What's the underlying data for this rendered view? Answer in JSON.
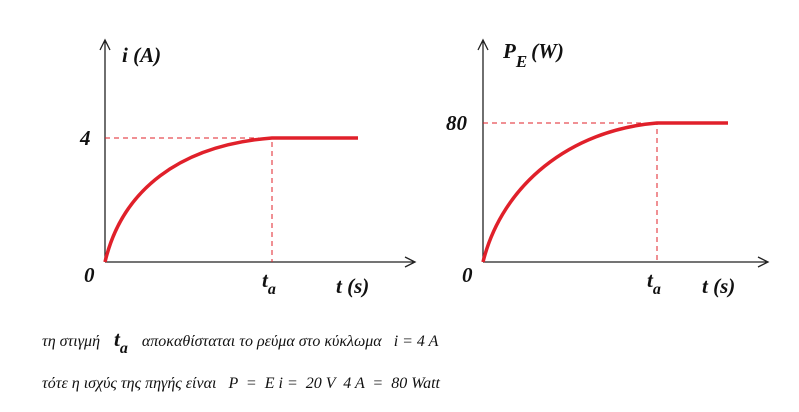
{
  "graphs": [
    {
      "y_axis_label": {
        "main": "i",
        "sub": null,
        "unit": "(A)"
      },
      "level_label": "4",
      "origin_label": "0",
      "time_label": {
        "main": "t",
        "sub": "a"
      },
      "x_axis_label": "t (s)"
    },
    {
      "y_axis_label": {
        "main": "P",
        "sub": "E",
        "unit": "(W)"
      },
      "level_label": "80",
      "origin_label": "0",
      "time_label": {
        "main": "t",
        "sub": "a"
      },
      "x_axis_label": "t (s)"
    }
  ],
  "text_lines": [
    {
      "before": "τη στιγμή",
      "symbol": {
        "main": "t",
        "sub": "a"
      },
      "after": "αποκαθίσταται το ρεύμα στο κύκλωμα   i = 4 A"
    },
    {
      "before": "τότε η ισχύς της πηγής είναι   P  =  E i =  20 V  4 A  =  80 Watt"
    }
  ]
}
